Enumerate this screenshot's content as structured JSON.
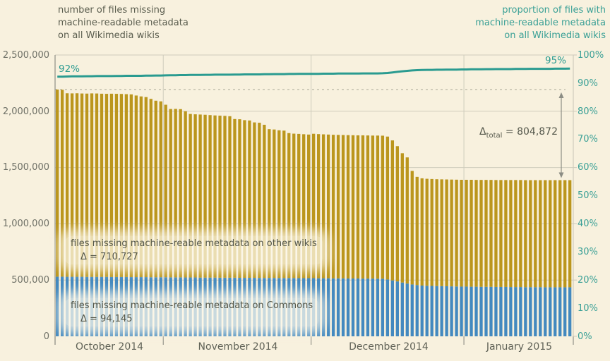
{
  "titles": {
    "left": [
      "number of files missing",
      "machine-readable metadata",
      "on all Wikimedia wikis"
    ],
    "right": [
      "proportion of files with",
      "machine-readable metadata",
      "on all Wikimedia wikis"
    ]
  },
  "annotations": {
    "line_start_label": "92%",
    "line_end_label": "95%",
    "delta_total_symbol": "Δ",
    "delta_total_sub": "total",
    "delta_total_value": " = 804,872",
    "other_wikis_label": "files missing machine-reable metadata on other wikis",
    "other_wikis_delta": "Δ = 710,727",
    "commons_label": "files missing machine-reable metadata on Commons",
    "commons_delta": "Δ = 94,145"
  },
  "colors": {
    "background": "#f8f1de",
    "commons_bar": "#4389bf",
    "other_wikis_bar": "#bb961d",
    "proportion_line": "#2a9b90",
    "grid": "#cfccbc",
    "axis": "#8e8e85",
    "dashed_reference": "#c2bfae",
    "arrow": "#8c8d84",
    "text": "#5a5d4e",
    "teal_text": "#3aa096"
  },
  "chart_data": {
    "type": "bar",
    "subtype": "stacked-daily-bars-with-right-axis-line",
    "title": "number of files missing machine-readable metadata on all Wikimedia wikis",
    "xlabel": "",
    "ylabel_left": "number of files missing machine-readable metadata",
    "ylabel_right": "proportion of files with machine-readable metadata",
    "y_left": {
      "lim": [
        0,
        2500000
      ],
      "tick_labels": [
        "0",
        "500,000",
        "1,000,000",
        "1,500,000",
        "2,000,000",
        "2,500,000"
      ]
    },
    "y_right": {
      "lim": [
        0,
        100
      ],
      "tick_labels": [
        "0%",
        "10%",
        "20%",
        "30%",
        "40%",
        "50%",
        "60%",
        "70%",
        "80%",
        "90%",
        "100%"
      ]
    },
    "grid": true,
    "months": [
      {
        "label": "October 2014",
        "days": 22
      },
      {
        "label": "November 2014",
        "days": 30
      },
      {
        "label": "December 2014",
        "days": 31
      },
      {
        "label": "January 2015",
        "days": 22
      }
    ],
    "reference_level": 2193000,
    "series": [
      {
        "name": "files missing machine-reable metadata on Commons",
        "axis": "left",
        "delta": 94145,
        "values": [
          530000,
          530000,
          529000,
          529000,
          529000,
          529000,
          528000,
          528000,
          528000,
          528000,
          528000,
          527000,
          527000,
          527000,
          527000,
          526000,
          526000,
          526000,
          526000,
          525000,
          525000,
          525000,
          525000,
          524000,
          524000,
          524000,
          523000,
          523000,
          523000,
          522000,
          522000,
          522000,
          522000,
          521000,
          521000,
          521000,
          521000,
          520000,
          520000,
          520000,
          520000,
          519000,
          519000,
          519000,
          519000,
          518000,
          518000,
          518000,
          518000,
          517000,
          517000,
          517000,
          517000,
          516000,
          516000,
          516000,
          515000,
          515000,
          515000,
          514000,
          514000,
          514000,
          513000,
          513000,
          513000,
          512000,
          512000,
          505000,
          497000,
          488000,
          478000,
          469000,
          461000,
          455000,
          451000,
          449000,
          448000,
          447000,
          446000,
          445000,
          444000,
          443000,
          442000,
          442000,
          441000,
          441000,
          440000,
          440000,
          440000,
          439000,
          439000,
          439000,
          438000,
          438000,
          438000,
          437000,
          437000,
          437000,
          437000,
          436000,
          436000,
          436000,
          436000,
          436000,
          436000
        ]
      },
      {
        "name": "files missing machine-reable metadata on other wikis",
        "axis": "left",
        "delta": 710727,
        "values": [
          1663000,
          1661000,
          1631000,
          1630000,
          1631000,
          1629000,
          1629000,
          1631000,
          1630000,
          1628000,
          1627000,
          1629000,
          1628000,
          1627000,
          1625000,
          1624000,
          1614000,
          1606000,
          1600000,
          1585000,
          1569000,
          1563000,
          1533000,
          1496000,
          1497000,
          1495000,
          1477000,
          1453000,
          1450000,
          1449000,
          1447000,
          1444000,
          1441000,
          1440000,
          1438000,
          1435000,
          1410000,
          1409000,
          1401000,
          1398000,
          1381000,
          1379000,
          1361000,
          1322000,
          1319000,
          1313000,
          1310000,
          1288000,
          1283000,
          1282000,
          1279000,
          1276000,
          1283000,
          1281000,
          1279000,
          1277000,
          1276000,
          1275000,
          1274000,
          1274000,
          1273000,
          1272000,
          1273000,
          1272000,
          1271000,
          1272000,
          1271000,
          1270000,
          1244000,
          1202000,
          1149000,
          1121000,
          1009000,
          962000,
          953000,
          951000,
          950000,
          949000,
          949000,
          949000,
          949000,
          949000,
          949000,
          949000,
          950000,
          949000,
          950000,
          950000,
          950000,
          950000,
          950000,
          950000,
          951000,
          951000,
          951000,
          951000,
          951000,
          951000,
          951000,
          952000,
          952000,
          952000,
          952000,
          952000,
          952000
        ]
      },
      {
        "name": "proportion of files with machine-readable metadata",
        "axis": "right",
        "unit": "%",
        "values": [
          92.3,
          92.3,
          92.35,
          92.4,
          92.4,
          92.4,
          92.45,
          92.45,
          92.5,
          92.5,
          92.5,
          92.5,
          92.55,
          92.55,
          92.6,
          92.6,
          92.6,
          92.6,
          92.65,
          92.65,
          92.7,
          92.7,
          92.75,
          92.8,
          92.8,
          92.85,
          92.85,
          92.9,
          92.9,
          92.9,
          92.95,
          92.95,
          93.0,
          93.0,
          93.0,
          93.0,
          93.05,
          93.05,
          93.1,
          93.1,
          93.1,
          93.1,
          93.15,
          93.15,
          93.2,
          93.2,
          93.2,
          93.25,
          93.25,
          93.3,
          93.3,
          93.3,
          93.3,
          93.3,
          93.35,
          93.35,
          93.35,
          93.4,
          93.4,
          93.4,
          93.4,
          93.4,
          93.45,
          93.45,
          93.45,
          93.45,
          93.5,
          93.6,
          93.8,
          94.0,
          94.2,
          94.35,
          94.5,
          94.6,
          94.65,
          94.7,
          94.7,
          94.75,
          94.75,
          94.8,
          94.8,
          94.8,
          94.85,
          94.85,
          94.9,
          94.9,
          94.9,
          94.95,
          94.95,
          95.0,
          95.0,
          95.0,
          95.0,
          95.05,
          95.05,
          95.05,
          95.1,
          95.1,
          95.1,
          95.1,
          95.1,
          95.15,
          95.15,
          95.15,
          95.2
        ]
      }
    ]
  }
}
